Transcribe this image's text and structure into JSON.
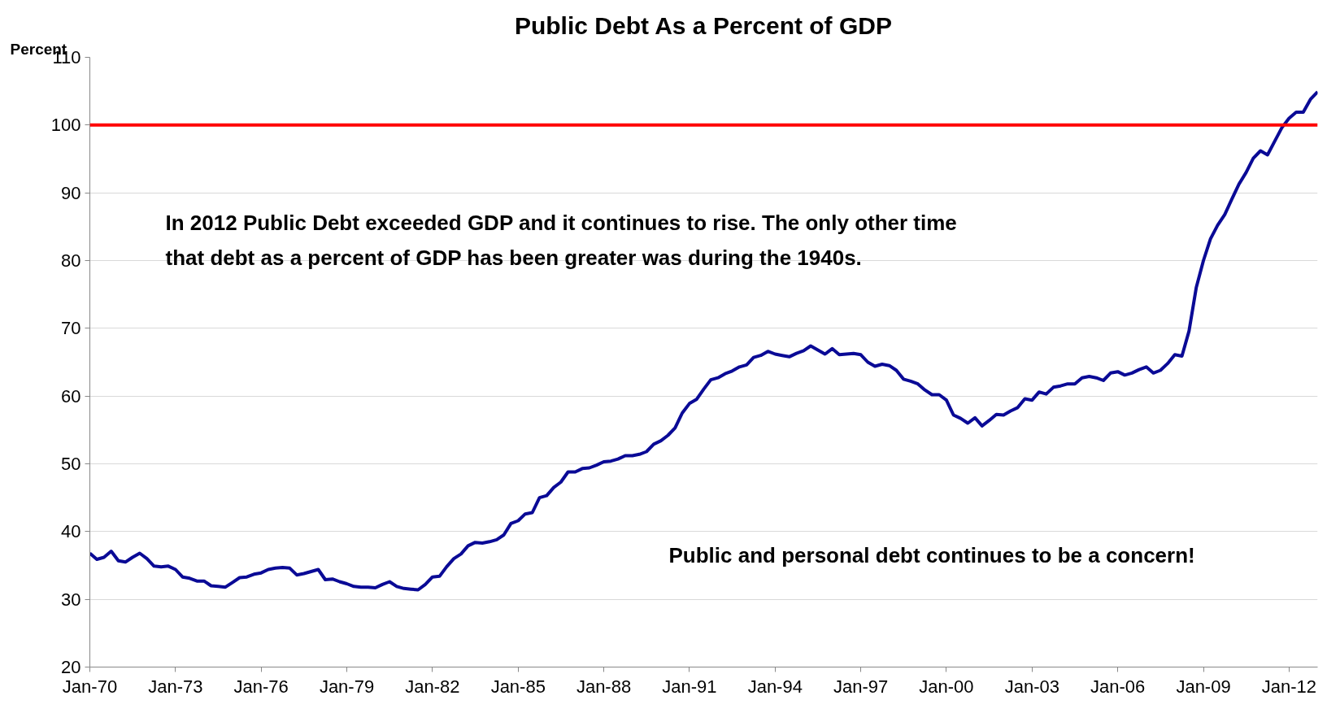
{
  "chart_data": {
    "type": "line",
    "title": "Public Debt As a Percent of GDP",
    "ylabel": "Percent",
    "x": [
      "1970-01",
      "1970-04",
      "1970-07",
      "1970-10",
      "1971-01",
      "1971-04",
      "1971-07",
      "1971-10",
      "1972-01",
      "1972-04",
      "1972-07",
      "1972-10",
      "1973-01",
      "1973-04",
      "1973-07",
      "1973-10",
      "1974-01",
      "1974-04",
      "1974-07",
      "1974-10",
      "1975-01",
      "1975-04",
      "1975-07",
      "1975-10",
      "1976-01",
      "1976-04",
      "1976-07",
      "1976-10",
      "1977-01",
      "1977-04",
      "1977-07",
      "1977-10",
      "1978-01",
      "1978-04",
      "1978-07",
      "1978-10",
      "1979-01",
      "1979-04",
      "1979-07",
      "1979-10",
      "1980-01",
      "1980-04",
      "1980-07",
      "1980-10",
      "1981-01",
      "1981-04",
      "1981-07",
      "1981-10",
      "1982-01",
      "1982-04",
      "1982-07",
      "1982-10",
      "1983-01",
      "1983-04",
      "1983-07",
      "1983-10",
      "1984-01",
      "1984-04",
      "1984-07",
      "1984-10",
      "1985-01",
      "1985-04",
      "1985-07",
      "1985-10",
      "1986-01",
      "1986-04",
      "1986-07",
      "1986-10",
      "1987-01",
      "1987-04",
      "1987-07",
      "1987-10",
      "1988-01",
      "1988-04",
      "1988-07",
      "1988-10",
      "1989-01",
      "1989-04",
      "1989-07",
      "1989-10",
      "1990-01",
      "1990-04",
      "1990-07",
      "1990-10",
      "1991-01",
      "1991-04",
      "1991-07",
      "1991-10",
      "1992-01",
      "1992-04",
      "1992-07",
      "1992-10",
      "1993-01",
      "1993-04",
      "1993-07",
      "1993-10",
      "1994-01",
      "1994-04",
      "1994-07",
      "1994-10",
      "1995-01",
      "1995-04",
      "1995-07",
      "1995-10",
      "1996-01",
      "1996-04",
      "1996-07",
      "1996-10",
      "1997-01",
      "1997-04",
      "1997-07",
      "1997-10",
      "1998-01",
      "1998-04",
      "1998-07",
      "1998-10",
      "1999-01",
      "1999-04",
      "1999-07",
      "1999-10",
      "2000-01",
      "2000-04",
      "2000-07",
      "2000-10",
      "2001-01",
      "2001-04",
      "2001-07",
      "2001-10",
      "2002-01",
      "2002-04",
      "2002-07",
      "2002-10",
      "2003-01",
      "2003-04",
      "2003-07",
      "2003-10",
      "2004-01",
      "2004-04",
      "2004-07",
      "2004-10",
      "2005-01",
      "2005-04",
      "2005-07",
      "2005-10",
      "2006-01",
      "2006-04",
      "2006-07",
      "2006-10",
      "2007-01",
      "2007-04",
      "2007-07",
      "2007-10",
      "2008-01",
      "2008-04",
      "2008-07",
      "2008-10",
      "2009-01",
      "2009-04",
      "2009-07",
      "2009-10",
      "2010-01",
      "2010-04",
      "2010-07",
      "2010-10",
      "2011-01",
      "2011-04",
      "2011-07",
      "2011-10",
      "2012-01",
      "2012-04",
      "2012-07",
      "2012-10",
      "2013-01"
    ],
    "series": [
      {
        "color": "#0a0a96",
        "values": [
          36.8,
          35.9,
          36.2,
          37.1,
          35.7,
          35.5,
          36.2,
          36.8,
          36.0,
          34.9,
          34.8,
          34.9,
          34.4,
          33.3,
          33.1,
          32.7,
          32.7,
          32.0,
          31.9,
          31.8,
          32.5,
          33.2,
          33.3,
          33.7,
          33.9,
          34.4,
          34.6,
          34.7,
          34.6,
          33.6,
          33.8,
          34.1,
          34.4,
          32.9,
          33.0,
          32.6,
          32.3,
          31.9,
          31.8,
          31.8,
          31.7,
          32.2,
          32.6,
          31.9,
          31.6,
          31.5,
          31.4,
          32.2,
          33.3,
          33.4,
          34.8,
          36.0,
          36.7,
          37.9,
          38.4,
          38.3,
          38.5,
          38.8,
          39.5,
          41.2,
          41.6,
          42.6,
          42.8,
          45.0,
          45.3,
          46.5,
          47.3,
          48.8,
          48.8,
          49.3,
          49.4,
          49.8,
          50.3,
          50.4,
          50.7,
          51.2,
          51.2,
          51.4,
          51.8,
          52.9,
          53.4,
          54.2,
          55.3,
          57.5,
          58.9,
          59.5,
          61.0,
          62.4,
          62.7,
          63.3,
          63.7,
          64.3,
          64.6,
          65.7,
          66.0,
          66.6,
          66.2,
          66.0,
          65.8,
          66.3,
          66.7,
          67.4,
          66.8,
          66.2,
          67.0,
          66.1,
          66.2,
          66.3,
          66.1,
          65.0,
          64.4,
          64.7,
          64.5,
          63.8,
          62.5,
          62.2,
          61.8,
          60.9,
          60.2,
          60.2,
          59.4,
          57.2,
          56.7,
          56.0,
          56.8,
          55.6,
          56.4,
          57.3,
          57.2,
          57.8,
          58.3,
          59.6,
          59.4,
          60.6,
          60.3,
          61.3,
          61.5,
          61.8,
          61.8,
          62.7,
          62.9,
          62.7,
          62.3,
          63.4,
          63.6,
          63.1,
          63.4,
          63.9,
          64.3,
          63.4,
          63.8,
          64.8,
          66.1,
          65.9,
          69.6,
          76.0,
          80.0,
          83.2,
          85.2,
          86.8,
          89.1,
          91.3,
          93.0,
          95.1,
          96.2,
          95.6,
          97.6,
          99.6,
          101.0,
          101.9,
          101.9,
          103.8,
          104.9
        ]
      }
    ],
    "xlim": [
      "1970-01",
      "2013-01"
    ],
    "xticks": [
      {
        "value": "1970-01",
        "label": "Jan-70"
      },
      {
        "value": "1973-01",
        "label": "Jan-73"
      },
      {
        "value": "1976-01",
        "label": "Jan-76"
      },
      {
        "value": "1979-01",
        "label": "Jan-79"
      },
      {
        "value": "1982-01",
        "label": "Jan-82"
      },
      {
        "value": "1985-01",
        "label": "Jan-85"
      },
      {
        "value": "1988-01",
        "label": "Jan-88"
      },
      {
        "value": "1991-01",
        "label": "Jan-91"
      },
      {
        "value": "1994-01",
        "label": "Jan-94"
      },
      {
        "value": "1997-01",
        "label": "Jan-97"
      },
      {
        "value": "2000-01",
        "label": "Jan-00"
      },
      {
        "value": "2003-01",
        "label": "Jan-03"
      },
      {
        "value": "2006-01",
        "label": "Jan-06"
      },
      {
        "value": "2009-01",
        "label": "Jan-09"
      },
      {
        "value": "2012-01",
        "label": "Jan-12"
      }
    ],
    "ylim": [
      20,
      110
    ],
    "yticks": [
      20,
      30,
      40,
      50,
      60,
      70,
      80,
      90,
      100,
      110
    ],
    "grid": "y",
    "marker": "none",
    "line_style": "solid",
    "ref_lines": [
      {
        "axis": "y",
        "value": 100,
        "color": "#ff0000"
      }
    ],
    "annotations": [
      "In 2012 Public Debt exceeded GDP and it continues to rise. The only other time\nthat debt as a percent of GDP has been greater was during the 1940s.",
      "Public and personal debt continues to be a concern!"
    ]
  }
}
